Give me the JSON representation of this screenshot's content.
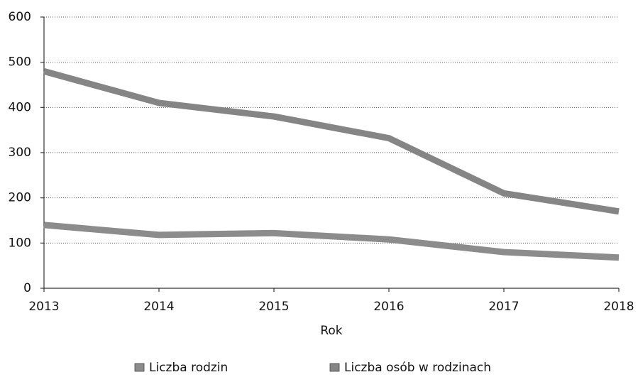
{
  "chart_data": {
    "type": "line",
    "x_label": "Rok",
    "x": [
      2013,
      2014,
      2015,
      2016,
      2017,
      2018
    ],
    "xlim": [
      2013,
      2018
    ],
    "xticks": [
      2013,
      2014,
      2015,
      2016,
      2017,
      2018
    ],
    "ylim": [
      0,
      600
    ],
    "yticks": [
      0,
      100,
      200,
      300,
      400,
      500,
      600
    ],
    "grid": true,
    "legend": "bottom",
    "series": [
      {
        "name": "Liczba rodzin",
        "color": "#8c8c8c",
        "values": [
          140,
          118,
          122,
          108,
          80,
          68
        ]
      },
      {
        "name": "Liczba osób w rodzinach",
        "color": "#858585",
        "values": [
          480,
          410,
          380,
          332,
          210,
          170
        ]
      }
    ]
  }
}
